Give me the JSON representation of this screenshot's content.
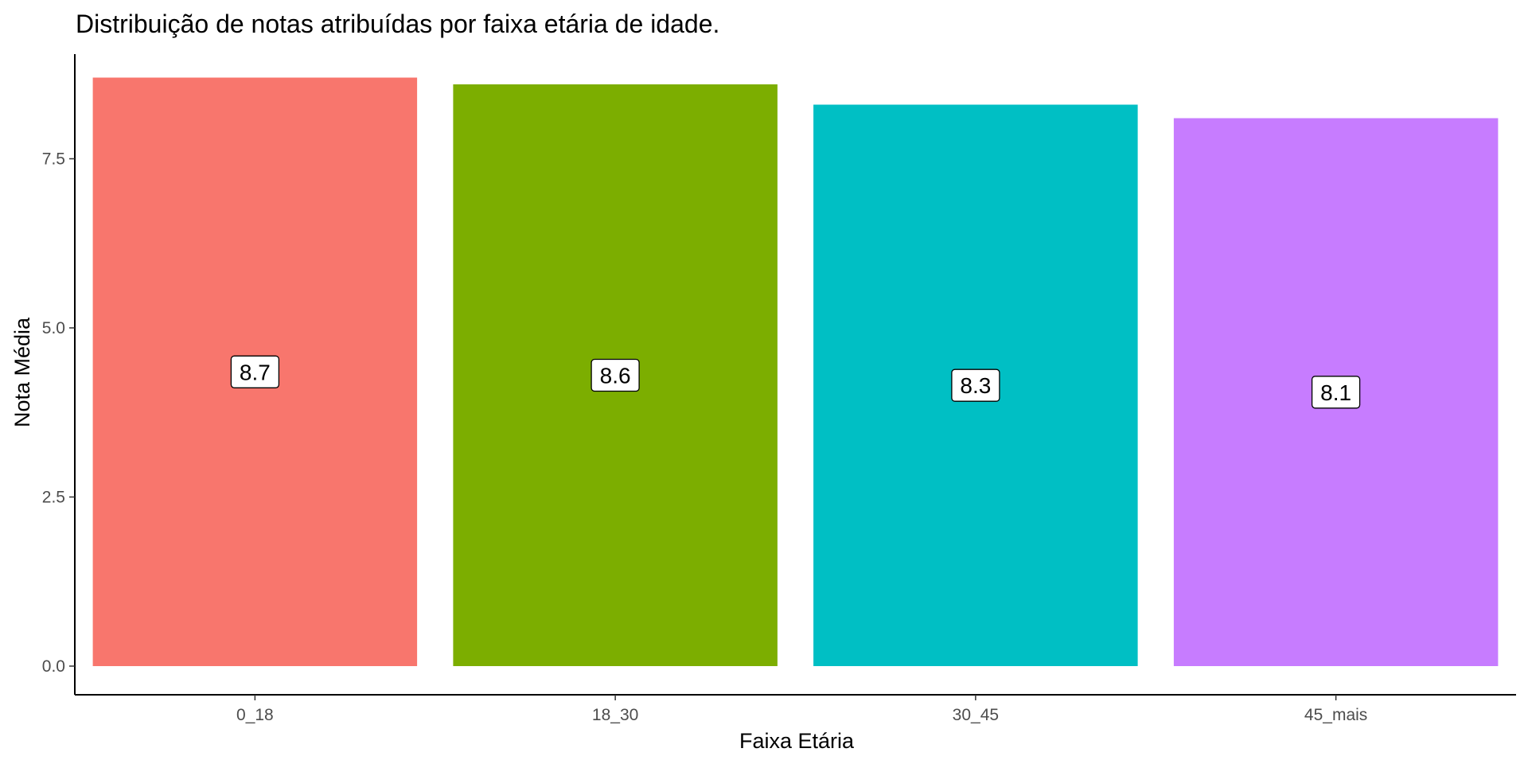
{
  "chart_data": {
    "type": "bar",
    "title": "Distribuição de notas atribuídas por faixa etária de idade.",
    "xlabel": "Faixa Etária",
    "ylabel": "Nota Média",
    "categories": [
      "0_18",
      "18_30",
      "30_45",
      "45_mais"
    ],
    "values": [
      8.7,
      8.6,
      8.3,
      8.1
    ],
    "data_labels": [
      "8.7",
      "8.6",
      "8.3",
      "8.1"
    ],
    "colors": [
      "#F8766D",
      "#7CAE00",
      "#00BFC4",
      "#C77CFF"
    ],
    "ylim": [
      0,
      9.1
    ],
    "yticks": [
      0,
      2.5,
      5,
      7.5
    ],
    "ytick_labels": [
      "0.0",
      "2.5",
      "5.0",
      "7.5"
    ],
    "grid": false,
    "legend": "none"
  }
}
